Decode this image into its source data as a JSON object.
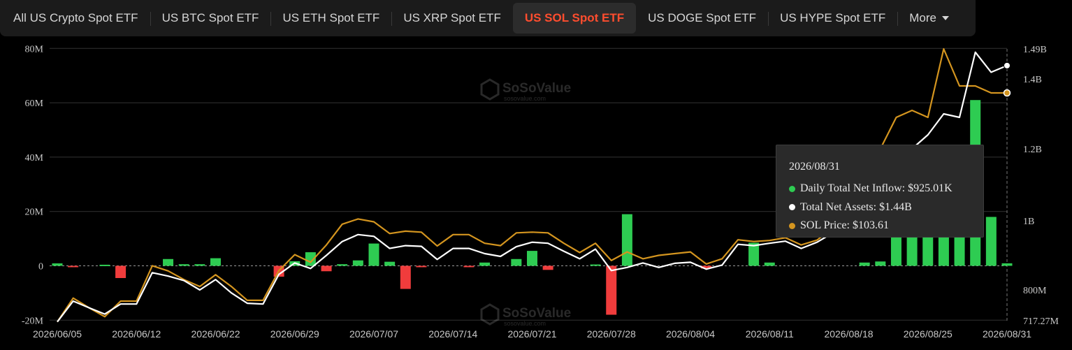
{
  "tabs": [
    {
      "label": "All US Crypto Spot ETF",
      "active": false
    },
    {
      "label": "US BTC Spot ETF",
      "active": false
    },
    {
      "label": "US ETH Spot ETF",
      "active": false
    },
    {
      "label": "US XRP Spot ETF",
      "active": false
    },
    {
      "label": "US SOL Spot ETF",
      "active": true
    },
    {
      "label": "US DOGE Spot ETF",
      "active": false
    },
    {
      "label": "US HYPE Spot ETF",
      "active": false
    }
  ],
  "more_label": "More",
  "watermark": "SoSoValue",
  "watermark_sub": "sosovalue.com",
  "colors": {
    "inflow": "#2ecc52",
    "outflow": "#f03c3c",
    "assets": "#ffffff",
    "price": "#d4951f",
    "active_tab": "#ff4d2e"
  },
  "tooltip": {
    "date": "2026/08/31",
    "items": [
      {
        "label": "Daily Total Net Inflow: $925.01K",
        "color": "#2ecc52"
      },
      {
        "label": "Total Net Assets: $1.44B",
        "color": "#ffffff"
      },
      {
        "label": "SOL Price: $103.61",
        "color": "#d4951f"
      }
    ]
  },
  "chart_data": {
    "type": "bar",
    "x_tick_labels": [
      "2026/06/05",
      "2026/06/12",
      "2026/06/22",
      "2026/06/29",
      "2026/07/07",
      "2026/07/14",
      "2026/07/21",
      "2026/07/28",
      "2026/08/04",
      "2026/08/11",
      "2026/08/18",
      "2026/08/25",
      "2026/08/31"
    ],
    "x_tick_index": [
      0,
      5,
      10,
      15,
      20,
      25,
      30,
      35,
      40,
      45,
      50,
      55,
      60
    ],
    "left_axis": {
      "ticks": [
        "80M",
        "60M",
        "40M",
        "20M",
        "0",
        "-20M"
      ],
      "min": -20,
      "max": 80,
      "unit": "M"
    },
    "right_axis": {
      "ticks": [
        "1.49B",
        "1.4B",
        "1.2B",
        "1B",
        "800M",
        "717.27M"
      ],
      "values": [
        1.49,
        1.4,
        1.2,
        1.0,
        0.8,
        0.71727
      ],
      "unit": "B"
    },
    "grid": true,
    "series": [
      {
        "name": "Daily Total Net Inflow",
        "kind": "bar",
        "unit": "M",
        "values": [
          0.9,
          -0.4,
          0,
          0.4,
          -4.5,
          0,
          0,
          2.5,
          0.6,
          0.6,
          2.8,
          0,
          0,
          0,
          -4,
          1.7,
          5,
          -2,
          0.6,
          2,
          8.2,
          1.5,
          -8.5,
          -0.5,
          0,
          0,
          -0.5,
          1.2,
          0,
          2.5,
          5.5,
          -1.5,
          0,
          0,
          0.5,
          -18,
          19,
          0,
          0,
          0,
          0,
          -1,
          0,
          0,
          8.5,
          1.2,
          0,
          0,
          0,
          0,
          0,
          1.2,
          1.6,
          16,
          16.5,
          12,
          16,
          21,
          61,
          18,
          0.925
        ]
      },
      {
        "name": "Total Net Assets",
        "kind": "line",
        "axis": "right",
        "unit": "B",
        "values": [
          0.714,
          0.77,
          0.752,
          0.735,
          0.762,
          0.762,
          0.85,
          0.84,
          0.827,
          0.8,
          0.83,
          0.792,
          0.764,
          0.762,
          0.845,
          0.878,
          0.862,
          0.9,
          0.94,
          0.96,
          0.955,
          0.92,
          0.928,
          0.926,
          0.888,
          0.92,
          0.92,
          0.905,
          0.897,
          0.925,
          0.938,
          0.935,
          0.912,
          0.89,
          0.918,
          0.856,
          0.865,
          0.878,
          0.865,
          0.877,
          0.88,
          0.86,
          0.872,
          0.932,
          0.928,
          0.935,
          0.941,
          0.92,
          0.938,
          0.965,
          1.005,
          1.04,
          1.08,
          1.128,
          1.2,
          1.24,
          1.3,
          1.29,
          1.48,
          1.42,
          1.44
        ]
      },
      {
        "name": "SOL Price",
        "kind": "line",
        "axis": "right",
        "unit": "B",
        "values": [
          0.714,
          0.778,
          0.752,
          0.728,
          0.77,
          0.77,
          0.87,
          0.855,
          0.83,
          0.81,
          0.844,
          0.81,
          0.772,
          0.772,
          0.856,
          0.902,
          0.88,
          0.93,
          0.99,
          1.005,
          0.997,
          0.963,
          0.97,
          0.967,
          0.927,
          0.96,
          0.96,
          0.935,
          0.928,
          0.965,
          0.967,
          0.965,
          0.935,
          0.908,
          0.935,
          0.885,
          0.91,
          0.89,
          0.9,
          0.905,
          0.91,
          0.875,
          0.89,
          0.945,
          0.94,
          0.943,
          0.951,
          0.93,
          0.944,
          0.98,
          1.05,
          1.11,
          1.2,
          1.29,
          1.31,
          1.29,
          1.49,
          1.38,
          1.38,
          1.36,
          1.36
        ]
      }
    ]
  }
}
